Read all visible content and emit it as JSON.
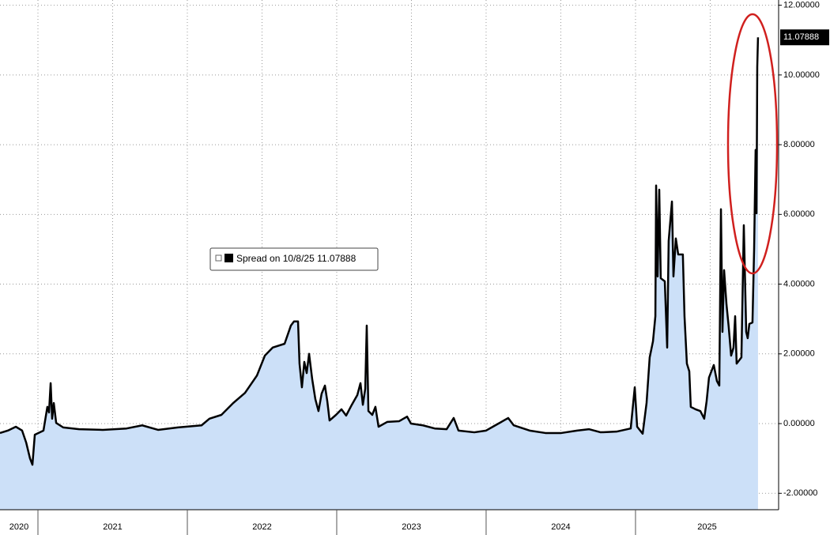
{
  "chart_data": {
    "type": "area",
    "x": [
      2020.746,
      2020.799,
      2020.852,
      2020.894,
      2020.921,
      2020.947,
      2020.963,
      2020.979,
      2021.037,
      2021.063,
      2021.074,
      2021.085,
      2021.095,
      2021.106,
      2021.122,
      2021.169,
      2021.275,
      2021.434,
      2021.593,
      2021.698,
      2021.804,
      2021.937,
      2022.095,
      2022.148,
      2022.228,
      2022.307,
      2022.386,
      2022.466,
      2022.519,
      2022.571,
      2022.651,
      2022.693,
      2022.714,
      2022.741,
      2022.751,
      2022.767,
      2022.783,
      2022.799,
      2022.815,
      2022.836,
      2022.857,
      2022.878,
      2022.899,
      2022.921,
      2022.937,
      2022.952,
      2022.995,
      2023.032,
      2023.063,
      2023.101,
      2023.138,
      2023.159,
      2023.175,
      2023.191,
      2023.201,
      2023.212,
      2023.238,
      2023.259,
      2023.28,
      2023.339,
      2023.418,
      2023.471,
      2023.497,
      2023.577,
      2023.656,
      2023.736,
      2023.783,
      2023.815,
      2023.921,
      2024.0,
      2024.053,
      2024.148,
      2024.185,
      2024.291,
      2024.397,
      2024.503,
      2024.609,
      2024.688,
      2024.767,
      2024.873,
      2024.968,
      2024.995,
      2025.011,
      2025.048,
      2025.074,
      2025.095,
      2025.117,
      2025.133,
      2025.138,
      2025.148,
      2025.159,
      2025.169,
      2025.196,
      2025.212,
      2025.222,
      2025.244,
      2025.254,
      2025.27,
      2025.286,
      2025.317,
      2025.328,
      2025.344,
      2025.36,
      2025.37,
      2025.402,
      2025.434,
      2025.46,
      2025.476,
      2025.492,
      2025.524,
      2025.545,
      2025.561,
      2025.572,
      2025.582,
      2025.593,
      2025.609,
      2025.624,
      2025.64,
      2025.656,
      2025.667,
      2025.677,
      2025.709,
      2025.725,
      2025.741,
      2025.751,
      2025.762,
      2025.783,
      2025.794,
      2025.804,
      2025.81,
      2025.815,
      2025.82
    ],
    "series": [
      {
        "name": "Spread",
        "color": "#000000",
        "fill": "#cce0f8",
        "values": [
          -0.27,
          -0.2,
          -0.09,
          -0.2,
          -0.54,
          -1.0,
          -1.18,
          -0.32,
          -0.2,
          0.48,
          0.32,
          1.16,
          0.14,
          0.59,
          0.02,
          -0.11,
          -0.16,
          -0.18,
          -0.14,
          -0.05,
          -0.18,
          -0.11,
          -0.05,
          0.14,
          0.25,
          0.59,
          0.88,
          1.38,
          1.95,
          2.18,
          2.29,
          2.81,
          2.93,
          2.93,
          1.72,
          1.04,
          1.77,
          1.45,
          2.0,
          1.27,
          0.7,
          0.36,
          0.86,
          1.09,
          0.64,
          0.09,
          0.25,
          0.41,
          0.23,
          0.54,
          0.82,
          1.16,
          0.54,
          1.0,
          2.81,
          0.36,
          0.25,
          0.48,
          -0.09,
          0.05,
          0.07,
          0.2,
          0.0,
          -0.05,
          -0.14,
          -0.16,
          0.16,
          -0.2,
          -0.25,
          -0.2,
          -0.07,
          0.16,
          -0.05,
          -0.2,
          -0.27,
          -0.27,
          -0.2,
          -0.16,
          -0.25,
          -0.23,
          -0.14,
          1.04,
          -0.09,
          -0.29,
          0.59,
          1.9,
          2.36,
          3.08,
          6.83,
          4.22,
          6.71,
          4.17,
          4.08,
          2.18,
          5.24,
          6.37,
          4.22,
          5.31,
          4.85,
          4.85,
          3.08,
          1.72,
          1.5,
          0.48,
          0.41,
          0.36,
          0.14,
          0.64,
          1.32,
          1.68,
          1.22,
          1.09,
          6.15,
          2.63,
          4.4,
          3.42,
          2.77,
          1.95,
          2.18,
          3.08,
          1.72,
          1.9,
          5.69,
          2.63,
          2.45,
          2.86,
          2.9,
          5.01,
          7.85,
          6.03,
          10.23,
          11.07888
        ]
      }
    ],
    "legend_date": "on 10/8/25",
    "xlim": [
      2020.746,
      2025.958
    ],
    "xticks": [
      {
        "value": 2020.5,
        "label": "2020"
      },
      {
        "value": 2021.5,
        "label": "2021"
      },
      {
        "value": 2022.5,
        "label": "2022"
      },
      {
        "value": 2023.5,
        "label": "2023"
      },
      {
        "value": 2024.5,
        "label": "2024"
      },
      {
        "value": 2025.5,
        "label": "2025"
      }
    ],
    "ylim": [
      -2.47,
      12.15
    ],
    "yticks": [
      {
        "value": -2,
        "label": "-2.00000"
      },
      {
        "value": 0,
        "label": "0.00000"
      },
      {
        "value": 2,
        "label": "2.00000"
      },
      {
        "value": 4,
        "label": "4.00000"
      },
      {
        "value": 6,
        "label": "6.00000"
      },
      {
        "value": 8,
        "label": "8.00000"
      },
      {
        "value": 10,
        "label": "10.00000"
      },
      {
        "value": 12,
        "label": "12.00000"
      }
    ],
    "grid": true
  }
}
